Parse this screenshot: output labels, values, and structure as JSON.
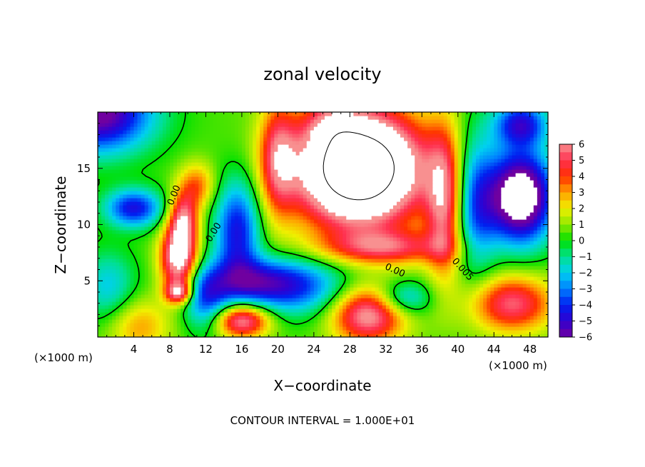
{
  "chart_data": {
    "type": "heatmap",
    "title": "zonal velocity",
    "xlabel": "X−coordinate",
    "ylabel": "Z−coordinate",
    "x_unit": "(×1000 m)",
    "y_unit": "(×1000 m)",
    "footer": "CONTOUR INTERVAL = 1.000E+01",
    "xlim": [
      0,
      50
    ],
    "ylim": [
      0,
      20
    ],
    "x_ticks": [
      {
        "value": 4,
        "label": "4"
      },
      {
        "value": 8,
        "label": "8"
      },
      {
        "value": 12,
        "label": "12"
      },
      {
        "value": 16,
        "label": "16"
      },
      {
        "value": 20,
        "label": "20"
      },
      {
        "value": 24,
        "label": "24"
      },
      {
        "value": 28,
        "label": "28"
      },
      {
        "value": 32,
        "label": "32"
      },
      {
        "value": 36,
        "label": "36"
      },
      {
        "value": 40,
        "label": "40"
      },
      {
        "value": 44,
        "label": "44"
      },
      {
        "value": 48,
        "label": "48"
      }
    ],
    "y_ticks": [
      {
        "value": 5,
        "label": "5"
      },
      {
        "value": 10,
        "label": "10"
      },
      {
        "value": 15,
        "label": "15"
      }
    ],
    "colorbar": {
      "min": -6,
      "max": 6,
      "labels": [
        "6",
        "5",
        "4",
        "3",
        "2",
        "1",
        "0",
        "−1",
        "−2",
        "−3",
        "−4",
        "−5",
        "−6"
      ]
    },
    "contour_labels": [
      {
        "text": "0.00",
        "x": 8.5,
        "z": 12.6,
        "angle": -68
      },
      {
        "text": "0.00",
        "x": 12.9,
        "z": 9.3,
        "angle": -58
      },
      {
        "text": "0.00",
        "x": 33.0,
        "z": 5.9,
        "angle": 24
      },
      {
        "text": "0.005",
        "x": 40.5,
        "z": 6.0,
        "angle": 48
      }
    ],
    "field_features": {
      "background": 0.5,
      "features": [
        {
          "x": 0.0,
          "z": 20.0,
          "sx": 6.0,
          "sz": 3.5,
          "v": -7
        },
        {
          "x": 4.0,
          "z": 11.5,
          "sx": 3.2,
          "sz": 1.7,
          "v": -5
        },
        {
          "x": 1.2,
          "z": 4.5,
          "sx": 3.0,
          "sz": 3.2,
          "v": -2.5
        },
        {
          "x": 4.5,
          "z": 1.0,
          "sx": 3.5,
          "sz": 2.5,
          "v": 2.5
        },
        {
          "x": 9.0,
          "z": 7.0,
          "sx": 2.0,
          "sz": 2.8,
          "v": 7
        },
        {
          "x": 9.5,
          "z": 10.5,
          "sx": 1.6,
          "sz": 2.4,
          "v": 5
        },
        {
          "x": 11.0,
          "z": 13.5,
          "sx": 2.0,
          "sz": 2.0,
          "v": 3
        },
        {
          "x": 9.0,
          "z": 4.0,
          "sx": 1.5,
          "sz": 1.0,
          "v": 5
        },
        {
          "x": 15.5,
          "z": 9.5,
          "sx": 2.5,
          "sz": 4.5,
          "v": -5
        },
        {
          "x": 12.0,
          "z": 3.5,
          "sx": 2.5,
          "sz": 2.8,
          "v": -4
        },
        {
          "x": 17.0,
          "z": 5.0,
          "sx": 5.0,
          "sz": 2.0,
          "v": -3.5
        },
        {
          "x": 22.0,
          "z": 4.5,
          "sx": 6.0,
          "sz": 2.5,
          "v": -4
        },
        {
          "x": 16.0,
          "z": 1.5,
          "sx": 3.0,
          "sz": 1.5,
          "v": 6
        },
        {
          "x": 20.0,
          "z": 16.0,
          "sx": 2.0,
          "sz": 5.0,
          "v": 4
        },
        {
          "x": 29.0,
          "z": 15.0,
          "sx": 7.0,
          "sz": 5.0,
          "v": 13
        },
        {
          "x": 38.5,
          "z": 12.0,
          "sx": 2.0,
          "sz": 6.5,
          "v": 5
        },
        {
          "x": 32.0,
          "z": 8.0,
          "sx": 7.0,
          "sz": 1.5,
          "v": 4
        },
        {
          "x": 30.0,
          "z": 2.0,
          "sx": 4.0,
          "sz": 2.5,
          "v": 6
        },
        {
          "x": 34.0,
          "z": 3.5,
          "sx": 3.0,
          "sz": 1.5,
          "v": -3
        },
        {
          "x": 42.0,
          "z": 12.0,
          "sx": 2.5,
          "sz": 6.0,
          "v": -4
        },
        {
          "x": 47.0,
          "z": 12.5,
          "sx": 3.5,
          "sz": 4.0,
          "v": -9
        },
        {
          "x": 46.0,
          "z": 3.0,
          "sx": 4.5,
          "sz": 2.5,
          "v": 5
        },
        {
          "x": 47.0,
          "z": 19.0,
          "sx": 3.0,
          "sz": 2.0,
          "v": -5
        },
        {
          "x": 26.0,
          "z": 19.0,
          "sx": 3.0,
          "sz": 2.0,
          "v": 2
        }
      ]
    }
  }
}
